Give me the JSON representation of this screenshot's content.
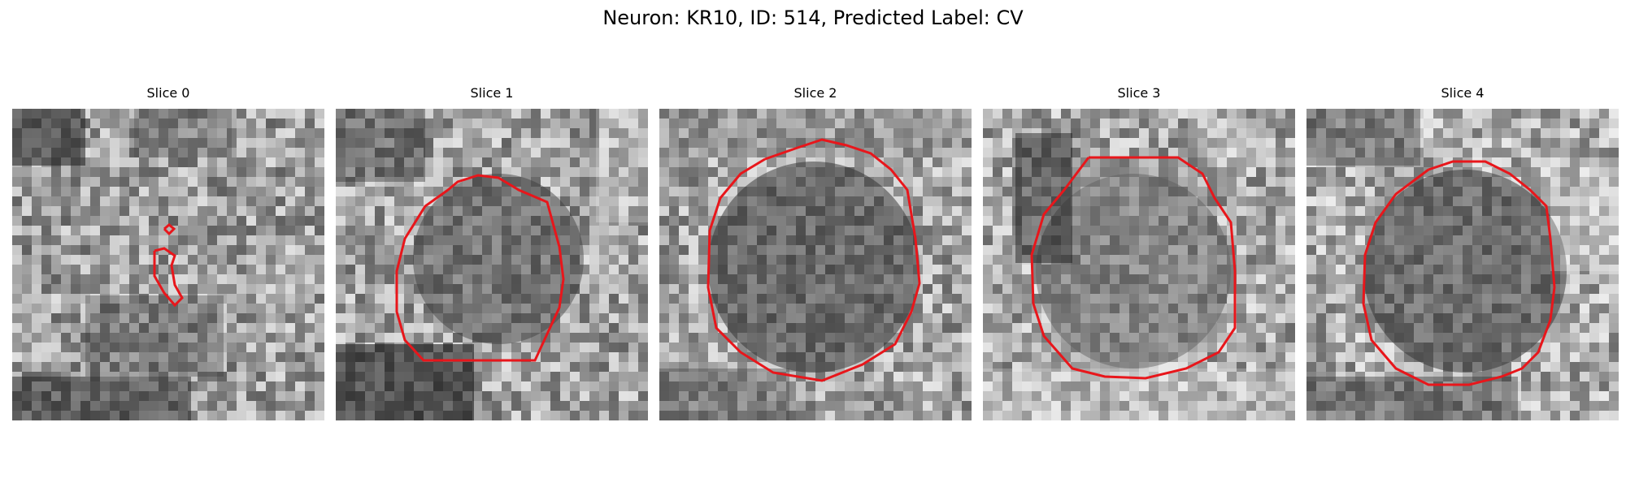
{
  "figure": {
    "title": "Neuron: KR10, ID: 514, Predicted Label: CV"
  },
  "panels": [
    {
      "title": "Slice 0"
    },
    {
      "title": "Slice 1"
    },
    {
      "title": "Slice 2"
    },
    {
      "title": "Slice 3"
    },
    {
      "title": "Slice 4"
    }
  ],
  "colors": {
    "contour": "#e8161b",
    "background": "#ffffff"
  }
}
